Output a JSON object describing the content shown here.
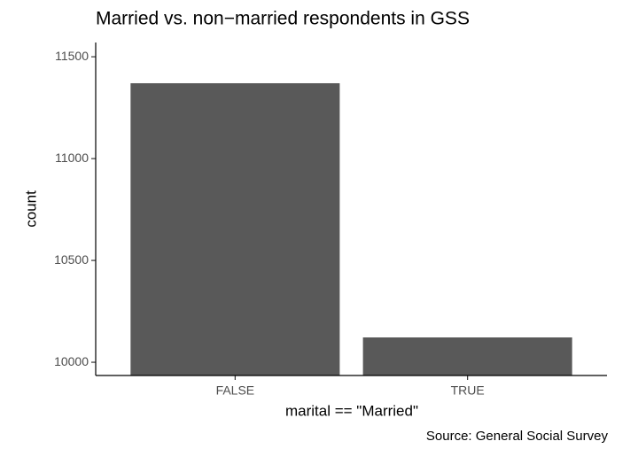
{
  "chart_data": {
    "type": "bar",
    "title": "Married vs. non−married respondents in GSS",
    "x_label": "marital == \"Married\"",
    "y_label": "count",
    "caption": "Source: General Social Survey",
    "categories": [
      "FALSE",
      "TRUE"
    ],
    "values": [
      11370,
      10122
    ],
    "color": "#595959",
    "ylim": [
      9935,
      11570
    ],
    "yticks": [
      10000,
      10500,
      11000,
      11500
    ],
    "grid": false
  }
}
